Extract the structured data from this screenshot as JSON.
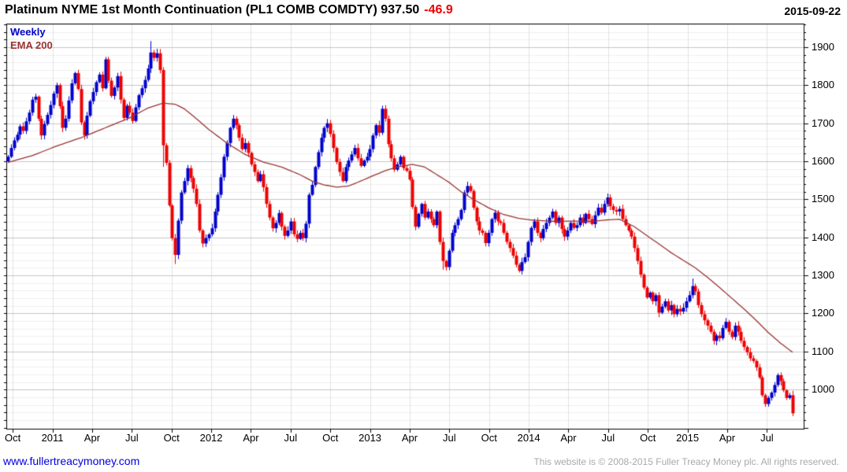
{
  "header": {
    "title": "Platinum NYME 1st Month Continuation (PL1 COMB COMDTY) 937.50",
    "change": "-46.9",
    "date": "2015-09-22"
  },
  "legend": {
    "frequency": "Weekly",
    "overlay": "EMA 200"
  },
  "footer": {
    "site_link": "www.fullertreacymoney.com",
    "copyright": "This website is © 2008-2015 Fuller Treacy Money plc. All rights reserved."
  },
  "colors": {
    "up": "#0000cc",
    "down": "#ee0000",
    "ema": "#993333",
    "change_text": "#ee0000",
    "link": "#0000dd",
    "copyright_text": "#a9a9a9",
    "grid_major": "#c6c6c6",
    "grid_minor": "#efefef",
    "grid_vertical": "#e2e2e2",
    "axis": "#000000",
    "legend_frequency": "#0000cc",
    "legend_overlay": "#993333"
  },
  "chart_data": {
    "type": "candlestick",
    "title": "Platinum NYME 1st Month Continuation (PL1 COMB COMDTY)",
    "instrument": "PL1 COMB COMDTY",
    "frequency": "Weekly",
    "overlay": "EMA 200",
    "last_price": 937.5,
    "change": -46.9,
    "as_of": "2015-09-22",
    "y_axis": {
      "min": 897,
      "max": 1962,
      "major_ticks": [
        1900,
        1800,
        1700,
        1600,
        1500,
        1400,
        1300,
        1200,
        1100,
        1000
      ],
      "minor_step": 20,
      "side": "right"
    },
    "x_axis": {
      "labels": [
        "Oct",
        "2011",
        "Apr",
        "Jul",
        "Oct",
        "2012",
        "Apr",
        "Jul",
        "Oct",
        "2013",
        "Apr",
        "Jul",
        "Oct",
        "2014",
        "Apr",
        "Jul",
        "Oct",
        "2015",
        "Apr",
        "Jul"
      ],
      "start": "2010-09",
      "end": "2015-09-22",
      "grid": true
    },
    "weekly_closes": [
      1612,
      1635,
      1655,
      1670,
      1692,
      1680,
      1705,
      1728,
      1762,
      1770,
      1712,
      1668,
      1698,
      1722,
      1748,
      1778,
      1800,
      1745,
      1688,
      1712,
      1760,
      1805,
      1832,
      1790,
      1702,
      1668,
      1720,
      1758,
      1782,
      1808,
      1828,
      1792,
      1868,
      1812,
      1772,
      1794,
      1824,
      1762,
      1714,
      1746,
      1728,
      1706,
      1742,
      1774,
      1792,
      1814,
      1844,
      1886,
      1872,
      1884,
      1840,
      1642,
      1596,
      1484,
      1398,
      1354,
      1444,
      1518,
      1548,
      1582,
      1556,
      1528,
      1488,
      1418,
      1384,
      1398,
      1408,
      1424,
      1468,
      1512,
      1558,
      1612,
      1648,
      1688,
      1712,
      1695,
      1662,
      1632,
      1648,
      1622,
      1592,
      1572,
      1548,
      1566,
      1532,
      1488,
      1452,
      1424,
      1438,
      1464,
      1428,
      1404,
      1418,
      1442,
      1408,
      1396,
      1412,
      1398,
      1436,
      1512,
      1538,
      1585,
      1624,
      1662,
      1688,
      1700,
      1672,
      1635,
      1598,
      1572,
      1548,
      1585,
      1602,
      1618,
      1635,
      1608,
      1588,
      1602,
      1612,
      1632,
      1668,
      1695,
      1675,
      1738,
      1712,
      1645,
      1608,
      1578,
      1592,
      1612,
      1582,
      1575,
      1552,
      1480,
      1428,
      1462,
      1488,
      1452,
      1468,
      1448,
      1432,
      1468,
      1388,
      1338,
      1322,
      1365,
      1412,
      1432,
      1448,
      1472,
      1518,
      1535,
      1522,
      1478,
      1442,
      1418,
      1412,
      1385,
      1412,
      1448,
      1465,
      1442,
      1438,
      1412,
      1388,
      1372,
      1352,
      1328,
      1312,
      1335,
      1348,
      1388,
      1425,
      1442,
      1412,
      1398,
      1422,
      1438,
      1452,
      1468,
      1438,
      1452,
      1422,
      1402,
      1418,
      1438,
      1425,
      1432,
      1452,
      1438,
      1462,
      1448,
      1435,
      1458,
      1478,
      1465,
      1488,
      1505,
      1482,
      1472,
      1468,
      1475,
      1448,
      1432,
      1418,
      1402,
      1372,
      1338,
      1302,
      1268,
      1242,
      1255,
      1232,
      1248,
      1202,
      1218,
      1232,
      1208,
      1222,
      1198,
      1212,
      1205,
      1215,
      1232,
      1248,
      1272,
      1258,
      1222,
      1198,
      1182,
      1168,
      1152,
      1128,
      1142,
      1135,
      1162,
      1178,
      1152,
      1138,
      1168,
      1152,
      1128,
      1112,
      1098,
      1082,
      1075,
      1058,
      1032,
      985,
      962,
      978,
      992,
      1012,
      1038,
      1022,
      998,
      978,
      985,
      937.5
    ],
    "wick_overrides": {
      "47": {
        "high": 1916
      },
      "51": {
        "low": 1585
      },
      "55": {
        "low": 1330
      },
      "143": {
        "low": 1315
      },
      "225": {
        "high": 1292
      },
      "258": {
        "low": 930
      }
    },
    "ema200_points": [
      [
        0,
        1597
      ],
      [
        8,
        1615
      ],
      [
        16,
        1640
      ],
      [
        24,
        1662
      ],
      [
        32,
        1688
      ],
      [
        40,
        1714
      ],
      [
        46,
        1740
      ],
      [
        51,
        1753
      ],
      [
        55,
        1750
      ],
      [
        58,
        1738
      ],
      [
        62,
        1712
      ],
      [
        66,
        1684
      ],
      [
        72,
        1648
      ],
      [
        78,
        1618
      ],
      [
        84,
        1598
      ],
      [
        90,
        1585
      ],
      [
        96,
        1565
      ],
      [
        100,
        1548
      ],
      [
        104,
        1538
      ],
      [
        108,
        1532
      ],
      [
        112,
        1535
      ],
      [
        116,
        1548
      ],
      [
        120,
        1562
      ],
      [
        124,
        1575
      ],
      [
        128,
        1585
      ],
      [
        133,
        1592
      ],
      [
        137,
        1585
      ],
      [
        141,
        1565
      ],
      [
        145,
        1545
      ],
      [
        149,
        1520
      ],
      [
        153,
        1500
      ],
      [
        158,
        1478
      ],
      [
        163,
        1460
      ],
      [
        168,
        1450
      ],
      [
        173,
        1445
      ],
      [
        180,
        1442
      ],
      [
        186,
        1443
      ],
      [
        192,
        1442
      ],
      [
        197,
        1446
      ],
      [
        201,
        1448
      ],
      [
        206,
        1428
      ],
      [
        210,
        1405
      ],
      [
        214,
        1383
      ],
      [
        218,
        1360
      ],
      [
        222,
        1340
      ],
      [
        226,
        1320
      ],
      [
        230,
        1295
      ],
      [
        234,
        1268
      ],
      [
        238,
        1240
      ],
      [
        242,
        1212
      ],
      [
        246,
        1182
      ],
      [
        250,
        1150
      ],
      [
        254,
        1122
      ],
      [
        258,
        1098
      ]
    ]
  }
}
